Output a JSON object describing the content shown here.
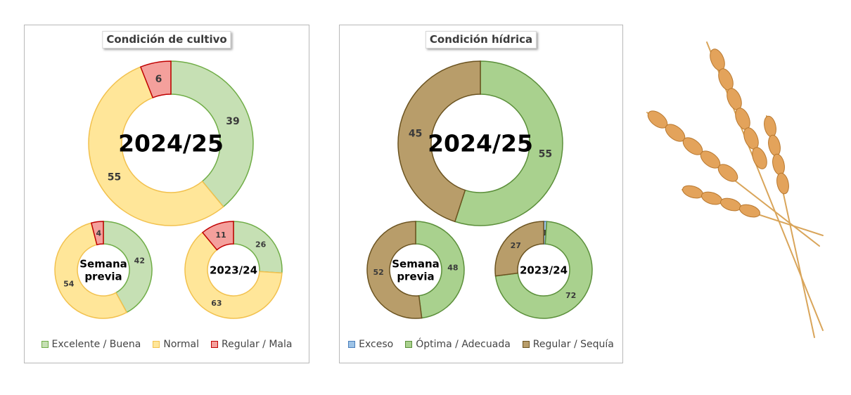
{
  "chart_data": [
    {
      "type": "donut",
      "title": "Condición de cultivo",
      "categories": [
        "Excelente / Buena",
        "Normal",
        "Regular / Mala"
      ],
      "colors": [
        "#c6e0b4",
        "#ffe699",
        "#f4a09c"
      ],
      "strokes": [
        "#70ad47",
        "#f2c14e",
        "#c00000"
      ],
      "series": [
        {
          "center_label": "2024/25",
          "values": [
            39,
            55,
            6
          ]
        },
        {
          "center_label": "Semana previa",
          "values": [
            42,
            54,
            4
          ]
        },
        {
          "center_label": "2023/24",
          "values": [
            26,
            63,
            11
          ]
        }
      ],
      "legend_position": "bottom"
    },
    {
      "type": "donut",
      "title": "Condición hídrica",
      "categories": [
        "Exceso",
        "Óptima / Adecuada",
        "Regular / Sequía"
      ],
      "colors": [
        "#9dc3e6",
        "#a9d18e",
        "#b89d6a"
      ],
      "strokes": [
        "#4a7ebb",
        "#5b8f3a",
        "#6b5320"
      ],
      "series": [
        {
          "center_label": "2024/25",
          "values": [
            0,
            55,
            45
          ]
        },
        {
          "center_label": "Semana previa",
          "values": [
            0,
            48,
            52
          ]
        },
        {
          "center_label": "2023/24",
          "values": [
            1,
            72,
            27
          ]
        }
      ],
      "legend_position": "bottom"
    }
  ],
  "decoration": {
    "icon": "wheat-icon"
  }
}
